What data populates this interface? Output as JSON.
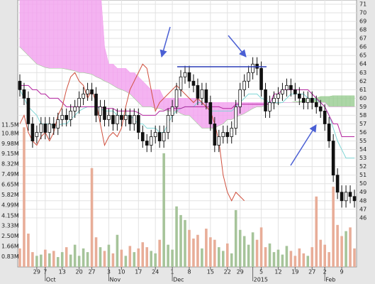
{
  "chart_data": {
    "type": "candlestick",
    "xlim": [
      -0.5,
      79.5
    ],
    "xticks": [
      {
        "value": 4,
        "label": "29"
      },
      {
        "value": 6,
        "label": "7"
      },
      {
        "value": 10,
        "label": "13"
      },
      {
        "value": 14,
        "label": "20"
      },
      {
        "value": 17,
        "label": "27"
      },
      {
        "value": 21,
        "label": "3"
      },
      {
        "value": 24,
        "label": "10"
      },
      {
        "value": 28,
        "label": "17"
      },
      {
        "value": 32,
        "label": "24"
      },
      {
        "value": 36,
        "label": "1"
      },
      {
        "value": 40,
        "label": "8"
      },
      {
        "value": 45,
        "label": "15"
      },
      {
        "value": 49,
        "label": "22"
      },
      {
        "value": 52,
        "label": "29"
      },
      {
        "value": 57,
        "label": "5"
      },
      {
        "value": 61,
        "label": "12"
      },
      {
        "value": 65,
        "label": "19"
      },
      {
        "value": 69,
        "label": "27"
      },
      {
        "value": 72,
        "label": "2"
      },
      {
        "value": 76,
        "label": "9"
      }
    ],
    "month_ticks": [
      {
        "value": 6,
        "label": "Oct"
      },
      {
        "value": 21,
        "label": "Nov"
      },
      {
        "value": 36,
        "label": "Dec"
      },
      {
        "value": 55,
        "label": "2015"
      },
      {
        "value": 72,
        "label": "Feb"
      }
    ],
    "ylim": [
      40.25,
      71.5
    ],
    "yticks": [
      46,
      47,
      48,
      49,
      50,
      51,
      52,
      53,
      54,
      55,
      56,
      57,
      58,
      59,
      60,
      61,
      62,
      63,
      64,
      65,
      66,
      67,
      68,
      69,
      70,
      71
    ],
    "grid": true,
    "up_color": "#ffffff",
    "down_color": "#111111",
    "open": [
      62,
      61,
      60,
      57,
      55.5,
      56,
      57,
      56,
      57,
      56.5,
      57.5,
      58,
      57.5,
      58.5,
      59,
      60,
      60.5,
      61,
      60.5,
      58,
      59,
      57.5,
      58,
      57,
      58,
      57.5,
      58,
      57,
      58,
      56,
      55,
      54.5,
      55.5,
      56,
      55,
      56,
      58,
      59,
      61,
      62.5,
      63,
      62,
      61.5,
      60,
      61,
      59.5,
      57,
      54.5,
      55.5,
      56,
      55.5,
      56.5,
      59,
      61,
      62,
      63,
      64,
      63.5,
      61,
      58.5,
      59.5,
      60,
      60.5,
      61,
      61.5,
      61,
      60.5,
      60,
      59.5,
      60,
      59.5,
      59,
      58.5,
      57,
      55,
      51,
      49,
      48,
      49,
      48.5
    ],
    "high": [
      62.8,
      61.8,
      60.8,
      57.8,
      56.8,
      57.8,
      57.8,
      57.8,
      57.8,
      58.3,
      58.8,
      58.8,
      59.3,
      59.8,
      60.8,
      61.3,
      61.8,
      61.8,
      61.3,
      59.8,
      59.8,
      58.8,
      58.8,
      58.8,
      58.8,
      58.8,
      58.8,
      58.8,
      58.8,
      56.8,
      55.8,
      56.3,
      56.8,
      56.8,
      56.8,
      58.8,
      59.8,
      61.8,
      63.3,
      63.8,
      63.8,
      62.8,
      62.3,
      61.8,
      61.8,
      60.3,
      57.8,
      56.3,
      56.8,
      56.8,
      57.3,
      59.8,
      61.8,
      62.8,
      63.8,
      64.8,
      64.8,
      64.3,
      61.8,
      60.3,
      60.8,
      61.3,
      61.8,
      62.3,
      62.3,
      61.8,
      61.3,
      60.8,
      60.8,
      60.8,
      60.3,
      59.8,
      59.3,
      57.8,
      55.8,
      51.8,
      49.8,
      49.8,
      49.8,
      49.3
    ],
    "low": [
      60.2,
      59.2,
      56.2,
      54.2,
      54.7,
      55.2,
      55.2,
      55.2,
      55.7,
      55.7,
      56.7,
      56.7,
      56.7,
      57.7,
      58.2,
      59.2,
      59.7,
      59.7,
      57.2,
      57.2,
      56.7,
      56.7,
      56.2,
      56.2,
      56.7,
      56.7,
      56.2,
      56.2,
      55.2,
      54.2,
      53.7,
      53.7,
      54.7,
      54.2,
      54.2,
      55.2,
      57.2,
      58.2,
      60.2,
      61.7,
      61.2,
      60.7,
      59.2,
      59.2,
      58.7,
      56.2,
      53.7,
      53.7,
      54.7,
      54.7,
      54.7,
      55.7,
      58.2,
      60.2,
      61.2,
      62.2,
      62.7,
      60.2,
      57.7,
      57.7,
      58.7,
      59.2,
      59.7,
      60.2,
      60.2,
      59.7,
      59.2,
      58.7,
      58.7,
      58.7,
      58.2,
      57.7,
      56.2,
      54.2,
      50.2,
      48.2,
      47.2,
      47.2,
      47.7,
      47.2
    ],
    "close": [
      61,
      60,
      57,
      55,
      56,
      57,
      56,
      57,
      56.5,
      57.5,
      58,
      57.5,
      58.5,
      59,
      60,
      60.5,
      61,
      60.5,
      58,
      59,
      57.5,
      58,
      57,
      58,
      57.5,
      58,
      57,
      58,
      56,
      55,
      54.5,
      55.5,
      56,
      55,
      56,
      58,
      59,
      61,
      62.5,
      63,
      62,
      61.5,
      60,
      61,
      59.5,
      57,
      54.5,
      55.5,
      56,
      55.5,
      56.5,
      59,
      61,
      62,
      63,
      64,
      63.5,
      61,
      58.5,
      59.5,
      60,
      60.5,
      61,
      61.5,
      61,
      60.5,
      60,
      59.5,
      60,
      59.5,
      59,
      58.5,
      57,
      55,
      51,
      49,
      48,
      49,
      48.5,
      48
    ],
    "volume": [
      1.5,
      11.3,
      2.7,
      1.2,
      0.9,
      1.0,
      1.4,
      1.1,
      1.3,
      0.8,
      1.2,
      1.6,
      1.0,
      1.8,
      0.9,
      1.5,
      1.2,
      8.0,
      2.4,
      1.6,
      1.3,
      1.8,
      1.1,
      2.6,
      1.4,
      0.9,
      1.7,
      1.2,
      1.5,
      2.0,
      1.6,
      1.3,
      1.1,
      2.2,
      9.2,
      1.8,
      1.4,
      4.9,
      4.2,
      3.8,
      3.0,
      2.3,
      2.6,
      1.5,
      3.1,
      2.4,
      2.2,
      1.6,
      1.3,
      1.9,
      1.1,
      4.6,
      3.0,
      2.5,
      1.8,
      2.8,
      2.2,
      3.2,
      1.6,
      1.9,
      1.2,
      1.4,
      1.0,
      1.7,
      1.3,
      0.9,
      1.5,
      1.1,
      0.9,
      1.6,
      5.7,
      2.2,
      1.8,
      1.2,
      6.5,
      3.4,
      2.5,
      2.9,
      3.2,
      1.5
    ],
    "volume_up_color": "#a6c49a",
    "volume_down_color": "#e8ad98",
    "volume_ylim": [
      0,
      21.6
    ],
    "volume_yticks": [
      {
        "value": 0.83,
        "label": "0.83M"
      },
      {
        "value": 1.66,
        "label": "1.66M"
      },
      {
        "value": 2.5,
        "label": "2.50M"
      },
      {
        "value": 3.33,
        "label": "3.33M"
      },
      {
        "value": 4.15,
        "label": "4.15M"
      },
      {
        "value": 4.99,
        "label": "4.99M"
      },
      {
        "value": 5.82,
        "label": "5.82M"
      },
      {
        "value": 6.65,
        "label": "6.65M"
      },
      {
        "value": 7.49,
        "label": "7.49M"
      },
      {
        "value": 8.32,
        "label": "8.32M"
      },
      {
        "value": 9.15,
        "label": "9.15M"
      },
      {
        "value": 9.98,
        "label": "9.98M"
      },
      {
        "value": 10.8,
        "label": "10.8M"
      },
      {
        "value": 11.5,
        "label": "11.5M"
      }
    ],
    "cloud": {
      "bear_color": "#f2a6ee",
      "bull_color": "#9fcf98",
      "span_a": [
        66,
        65.5,
        65,
        64.5,
        64,
        63.8,
        63.6,
        63.5,
        63.5,
        63.5,
        63.5,
        63.4,
        63.3,
        63.2,
        63,
        63,
        62.9,
        62.8,
        62.5,
        62.3,
        62,
        61.8,
        61.5,
        61.2,
        61,
        60.8,
        60.5,
        60,
        59.5,
        59,
        59,
        59,
        58.8,
        58.8,
        58.6,
        58.5,
        58.5,
        58.5,
        58.2,
        58,
        58,
        57.5,
        57,
        56.5,
        56.5,
        56.5,
        56.5,
        56.8,
        57,
        57.5,
        57.5,
        57.8,
        58,
        58.2,
        58.5,
        58.8,
        59,
        59,
        59.2,
        59.3,
        59.4,
        59.4,
        59.5,
        59.5,
        59.5,
        59.6,
        59.6,
        59.8,
        60,
        60,
        60,
        60.2,
        60.2,
        60.2,
        60.3,
        60.3,
        60.3,
        60.3,
        60.3,
        60.3
      ],
      "span_b": [
        73,
        73,
        73,
        73,
        73,
        73,
        73,
        73,
        73,
        73,
        73,
        73,
        73,
        73,
        73,
        73,
        73,
        73,
        73,
        73,
        66,
        64,
        64,
        63.5,
        63.5,
        63.5,
        63,
        63,
        62.5,
        62,
        61.5,
        61,
        61,
        61,
        60,
        60,
        60,
        60,
        60,
        60,
        60,
        60,
        60,
        59.5,
        59.5,
        59.5,
        59.5,
        59.5,
        59.5,
        59.5,
        59.5,
        59.5,
        59.5,
        59.5,
        59.5,
        59.5,
        59.5,
        59.5,
        59.5,
        59.5,
        59.5,
        59.5,
        59.5,
        59.5,
        59.5,
        59.5,
        59.5,
        59.5,
        59.5,
        59.5,
        59.5,
        59.5,
        59.5,
        59,
        59,
        59,
        59,
        59,
        59,
        59
      ]
    },
    "lines": [
      {
        "color": "#7fd6d6",
        "values": [
          61,
          60,
          59,
          58.5,
          58,
          57,
          57,
          57,
          56.8,
          56.8,
          57,
          57,
          57.5,
          58,
          58.5,
          58.8,
          59,
          59,
          59,
          58.8,
          58.5,
          58.5,
          58.5,
          58,
          58,
          58,
          58,
          57.5,
          57,
          57,
          56.5,
          56.5,
          56.5,
          56,
          56,
          57,
          58,
          58.5,
          58.8,
          59,
          59,
          59,
          59.5,
          59.5,
          59,
          58.5,
          58.5,
          58.5,
          58.5,
          58.5,
          58.5,
          59,
          59.5,
          60,
          60.5,
          60.5,
          60.5,
          60,
          59.8,
          59.5,
          59.5,
          59.5,
          59.5,
          60,
          60.5,
          60.5,
          60.5,
          60.5,
          60,
          60,
          59.8,
          59.5,
          59,
          58,
          56.5,
          55,
          54,
          53,
          53,
          53
        ]
      },
      {
        "color": "#b4229e",
        "values": [
          61.5,
          61.5,
          61.5,
          61,
          61,
          60.5,
          60.5,
          60,
          60,
          60,
          59.5,
          59,
          59,
          59,
          59,
          59,
          59,
          59,
          59,
          59,
          58.8,
          58.8,
          58.8,
          58.5,
          58.5,
          58.5,
          58.5,
          58.5,
          58.3,
          58,
          58,
          58,
          58,
          58.5,
          58.5,
          58.8,
          58.8,
          58.8,
          58.8,
          59,
          59,
          59,
          59,
          59,
          59,
          59,
          59,
          59,
          58.8,
          58.8,
          58.8,
          59.3,
          59.3,
          59.3,
          59.3,
          59.3,
          59.3,
          59.3,
          59.3,
          59.3,
          60.5,
          60.5,
          61,
          61,
          61,
          61,
          61,
          61,
          61,
          60.5,
          60,
          59.5,
          59,
          58,
          57,
          57,
          55.5,
          55.5,
          55.5,
          55.5
        ]
      },
      {
        "color": "#d0503e",
        "values": [
          57,
          58,
          56,
          55,
          54.5,
          55.5,
          56,
          55,
          56,
          58,
          59,
          61,
          62.5,
          63,
          62,
          61.5,
          60,
          61,
          59.5,
          57,
          54.5,
          55.5,
          56,
          55.5,
          56.5,
          59,
          61,
          62,
          63,
          64,
          63.5,
          61,
          58.5,
          59.5,
          60,
          60.5,
          61,
          61.5,
          61,
          60.5,
          60,
          59.5,
          60,
          59.5,
          59,
          58.5,
          57,
          55,
          51,
          49,
          48,
          49,
          48.5,
          48,
          null,
          null,
          null,
          null,
          null,
          null,
          null,
          null,
          null,
          null,
          null,
          null,
          null,
          null,
          null,
          null,
          null,
          null,
          null,
          null,
          null,
          null,
          null,
          null,
          null,
          null
        ]
      }
    ]
  }
}
